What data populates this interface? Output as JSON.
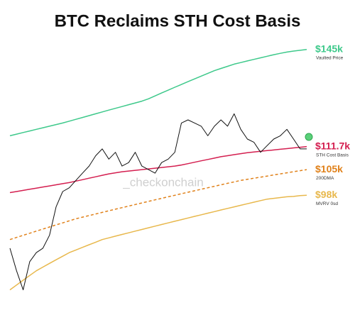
{
  "chart_data": {
    "type": "line",
    "title": "BTC Reclaims STH Cost Basis",
    "watermark": "_checkonchain",
    "log_scale": true,
    "ylim": [
      72,
      150
    ],
    "series": [
      {
        "name": "Vaulted Price",
        "color": "#3ec98b",
        "end_label": "$145k",
        "values": [
          115,
          115.5,
          116,
          116.5,
          117,
          117.5,
          118,
          118.5,
          119,
          119.6,
          120.2,
          120.8,
          121.4,
          122,
          122.6,
          123.2,
          123.8,
          124.4,
          125,
          125.6,
          126.2,
          127,
          128,
          129,
          130,
          131,
          132,
          133,
          134,
          135,
          136,
          137,
          137.8,
          138.6,
          139.4,
          140,
          140.6,
          141.2,
          141.8,
          142.4,
          143,
          143.5,
          144,
          144.4,
          144.7,
          145
        ]
      },
      {
        "name": "STH Cost Basis",
        "color": "#d41f50",
        "end_label": "$111.7k",
        "values": [
          98.7,
          99,
          99.3,
          99.6,
          99.9,
          100.2,
          100.5,
          100.8,
          101.1,
          101.4,
          101.8,
          102.2,
          102.6,
          103,
          103.4,
          103.8,
          104.1,
          104.4,
          104.6,
          104.8,
          105,
          105.2,
          105.4,
          105.6,
          105.8,
          106,
          106.3,
          106.7,
          107.1,
          107.5,
          107.9,
          108.3,
          108.7,
          109,
          109.3,
          109.6,
          109.9,
          110.1,
          110.3,
          110.5,
          110.7,
          110.9,
          111.1,
          111.3,
          111.5,
          111.7
        ]
      },
      {
        "name": "200DMA",
        "color": "#e0811a",
        "dashed": true,
        "end_label": "$105k",
        "values": [
          87,
          87.5,
          88,
          88.5,
          89,
          89.5,
          90,
          90.5,
          91,
          91.5,
          92,
          92.4,
          92.8,
          93.2,
          93.6,
          94,
          94.4,
          94.8,
          95.2,
          95.6,
          96,
          96.4,
          96.8,
          97.2,
          97.6,
          98,
          98.4,
          98.8,
          99.2,
          99.6,
          100,
          100.4,
          100.8,
          101.2,
          101.6,
          102,
          102.3,
          102.6,
          102.9,
          103.2,
          103.5,
          103.8,
          104.1,
          104.4,
          104.7,
          105
        ]
      },
      {
        "name": "MVRV 0sd",
        "color": "#e8b84c",
        "end_label": "$98k",
        "values": [
          76,
          77,
          78,
          79,
          80,
          80.8,
          81.6,
          82.4,
          83.2,
          84,
          84.6,
          85.2,
          85.8,
          86.4,
          87,
          87.4,
          87.8,
          88.2,
          88.6,
          89,
          89.4,
          89.8,
          90.2,
          90.6,
          91,
          91.4,
          91.8,
          92.2,
          92.6,
          93,
          93.4,
          93.8,
          94.2,
          94.6,
          95,
          95.4,
          95.8,
          96.2,
          96.6,
          97,
          97.2,
          97.4,
          97.6,
          97.7,
          97.9,
          98
        ]
      },
      {
        "color": "#111111",
        "values": [
          85,
          80,
          76,
          82,
          84,
          85,
          88,
          95,
          99,
          100,
          102,
          104,
          106,
          109,
          111,
          108,
          110,
          106,
          107,
          110,
          106,
          105,
          104,
          107,
          108,
          110,
          119,
          120,
          119,
          118,
          115,
          118,
          120,
          118,
          122,
          117,
          114,
          113,
          110,
          112,
          114,
          115,
          117,
          114,
          111,
          111
        ]
      }
    ]
  }
}
